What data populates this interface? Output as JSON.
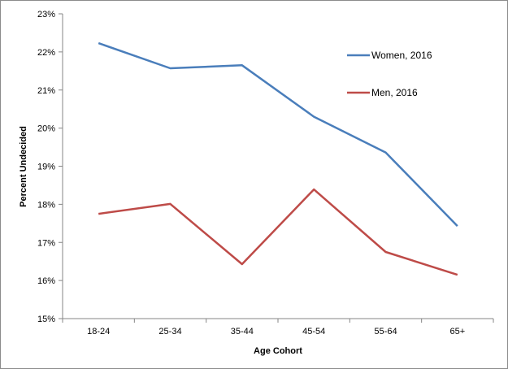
{
  "chart_data": {
    "type": "line",
    "title": "",
    "xlabel": "Age Cohort",
    "ylabel": "Percent Undecided",
    "categories": [
      "18-24",
      "25-34",
      "35-44",
      "45-54",
      "55-64",
      "65+"
    ],
    "ylim": [
      15,
      23
    ],
    "yticks": [
      15,
      16,
      17,
      18,
      19,
      20,
      21,
      22,
      23
    ],
    "ytick_format": "%",
    "grid": false,
    "legend_position": "top-right",
    "series": [
      {
        "name": "Women, 2016",
        "color": "#4a7ebb",
        "values": [
          22.23,
          21.57,
          21.65,
          20.3,
          19.36,
          17.43
        ]
      },
      {
        "name": "Men, 2016",
        "color": "#be4b48",
        "values": [
          17.75,
          18.01,
          16.43,
          18.39,
          16.75,
          16.15
        ]
      }
    ]
  }
}
